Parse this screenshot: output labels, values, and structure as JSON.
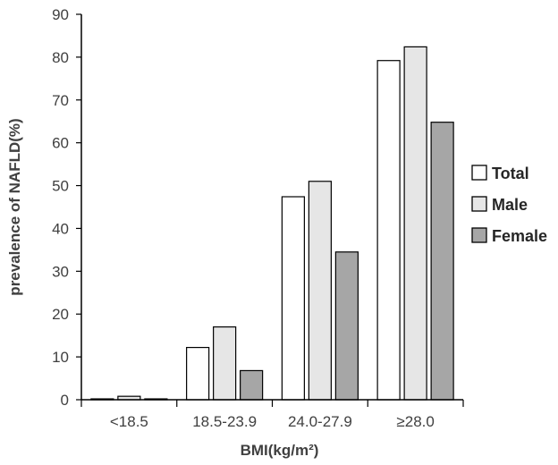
{
  "chart_data": {
    "type": "bar",
    "title": "",
    "xlabel": "BMI(kg/m²)",
    "ylabel": "prevalence of NAFLD(%)",
    "ylim": [
      0,
      90
    ],
    "yticks": [
      0,
      10,
      20,
      30,
      40,
      50,
      60,
      70,
      80,
      90
    ],
    "grid": false,
    "legend_position": "right",
    "categories": [
      "<18.5",
      "18.5-23.9",
      "24.0-27.9",
      "≥28.0"
    ],
    "series": [
      {
        "name": "Total",
        "values": [
          0.2,
          12.2,
          47.4,
          79.2
        ],
        "color": "#ffffff"
      },
      {
        "name": "Male",
        "values": [
          0.8,
          17.0,
          51.0,
          82.4
        ],
        "color": "#e6e6e6"
      },
      {
        "name": "Female",
        "values": [
          0.2,
          6.8,
          34.5,
          64.8
        ],
        "color": "#a6a6a6"
      }
    ]
  }
}
